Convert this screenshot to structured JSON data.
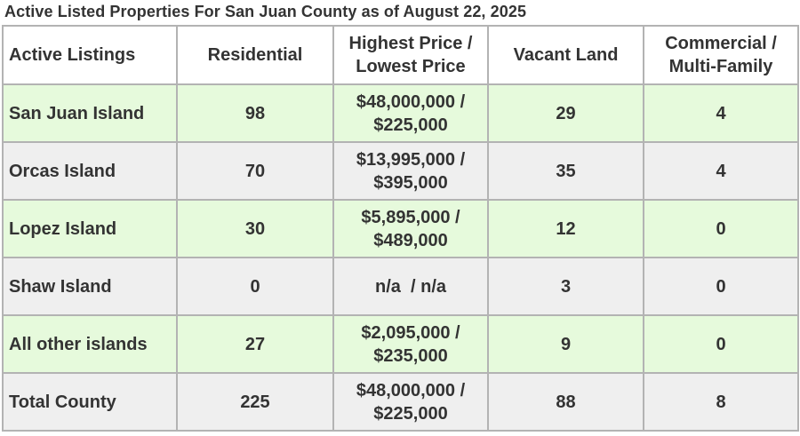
{
  "title": "Active Listed Properties For San Juan County as of August 22, 2025",
  "headers": {
    "listings": "Active Listings",
    "residential": "Residential",
    "price_line1": "Highest Price /",
    "price_line2": "Lowest Price",
    "vacant": "Vacant Land",
    "commercial_line1": "Commercial /",
    "commercial_line2": "Multi-Family"
  },
  "rows": [
    {
      "name": "San Juan Island",
      "residential": "98",
      "high": "$48,000,000 /",
      "low": "$225,000",
      "vacant": "29",
      "commercial": "4"
    },
    {
      "name": "Orcas Island",
      "residential": "70",
      "high": "$13,995,000 /",
      "low": "$395,000",
      "vacant": "35",
      "commercial": "4"
    },
    {
      "name": "Lopez Island",
      "residential": "30",
      "high": "$5,895,000 /",
      "low": "$489,000",
      "vacant": "12",
      "commercial": "0"
    },
    {
      "name": "Shaw Island",
      "residential": "0",
      "price_single": "n/a  / n/a",
      "vacant": "3",
      "commercial": "0"
    },
    {
      "name": "All other islands",
      "residential": "27",
      "high": "$2,095,000 /",
      "low": "$235,000",
      "vacant": "9",
      "commercial": "0"
    },
    {
      "name": "Total County",
      "residential": "225",
      "high": "$48,000,000 /",
      "low": "$225,000",
      "vacant": "88",
      "commercial": "8"
    }
  ],
  "colors": {
    "row_green": "#e6fadc",
    "row_gray": "#efefef",
    "border": "#b3b3b3",
    "text": "#333333"
  }
}
